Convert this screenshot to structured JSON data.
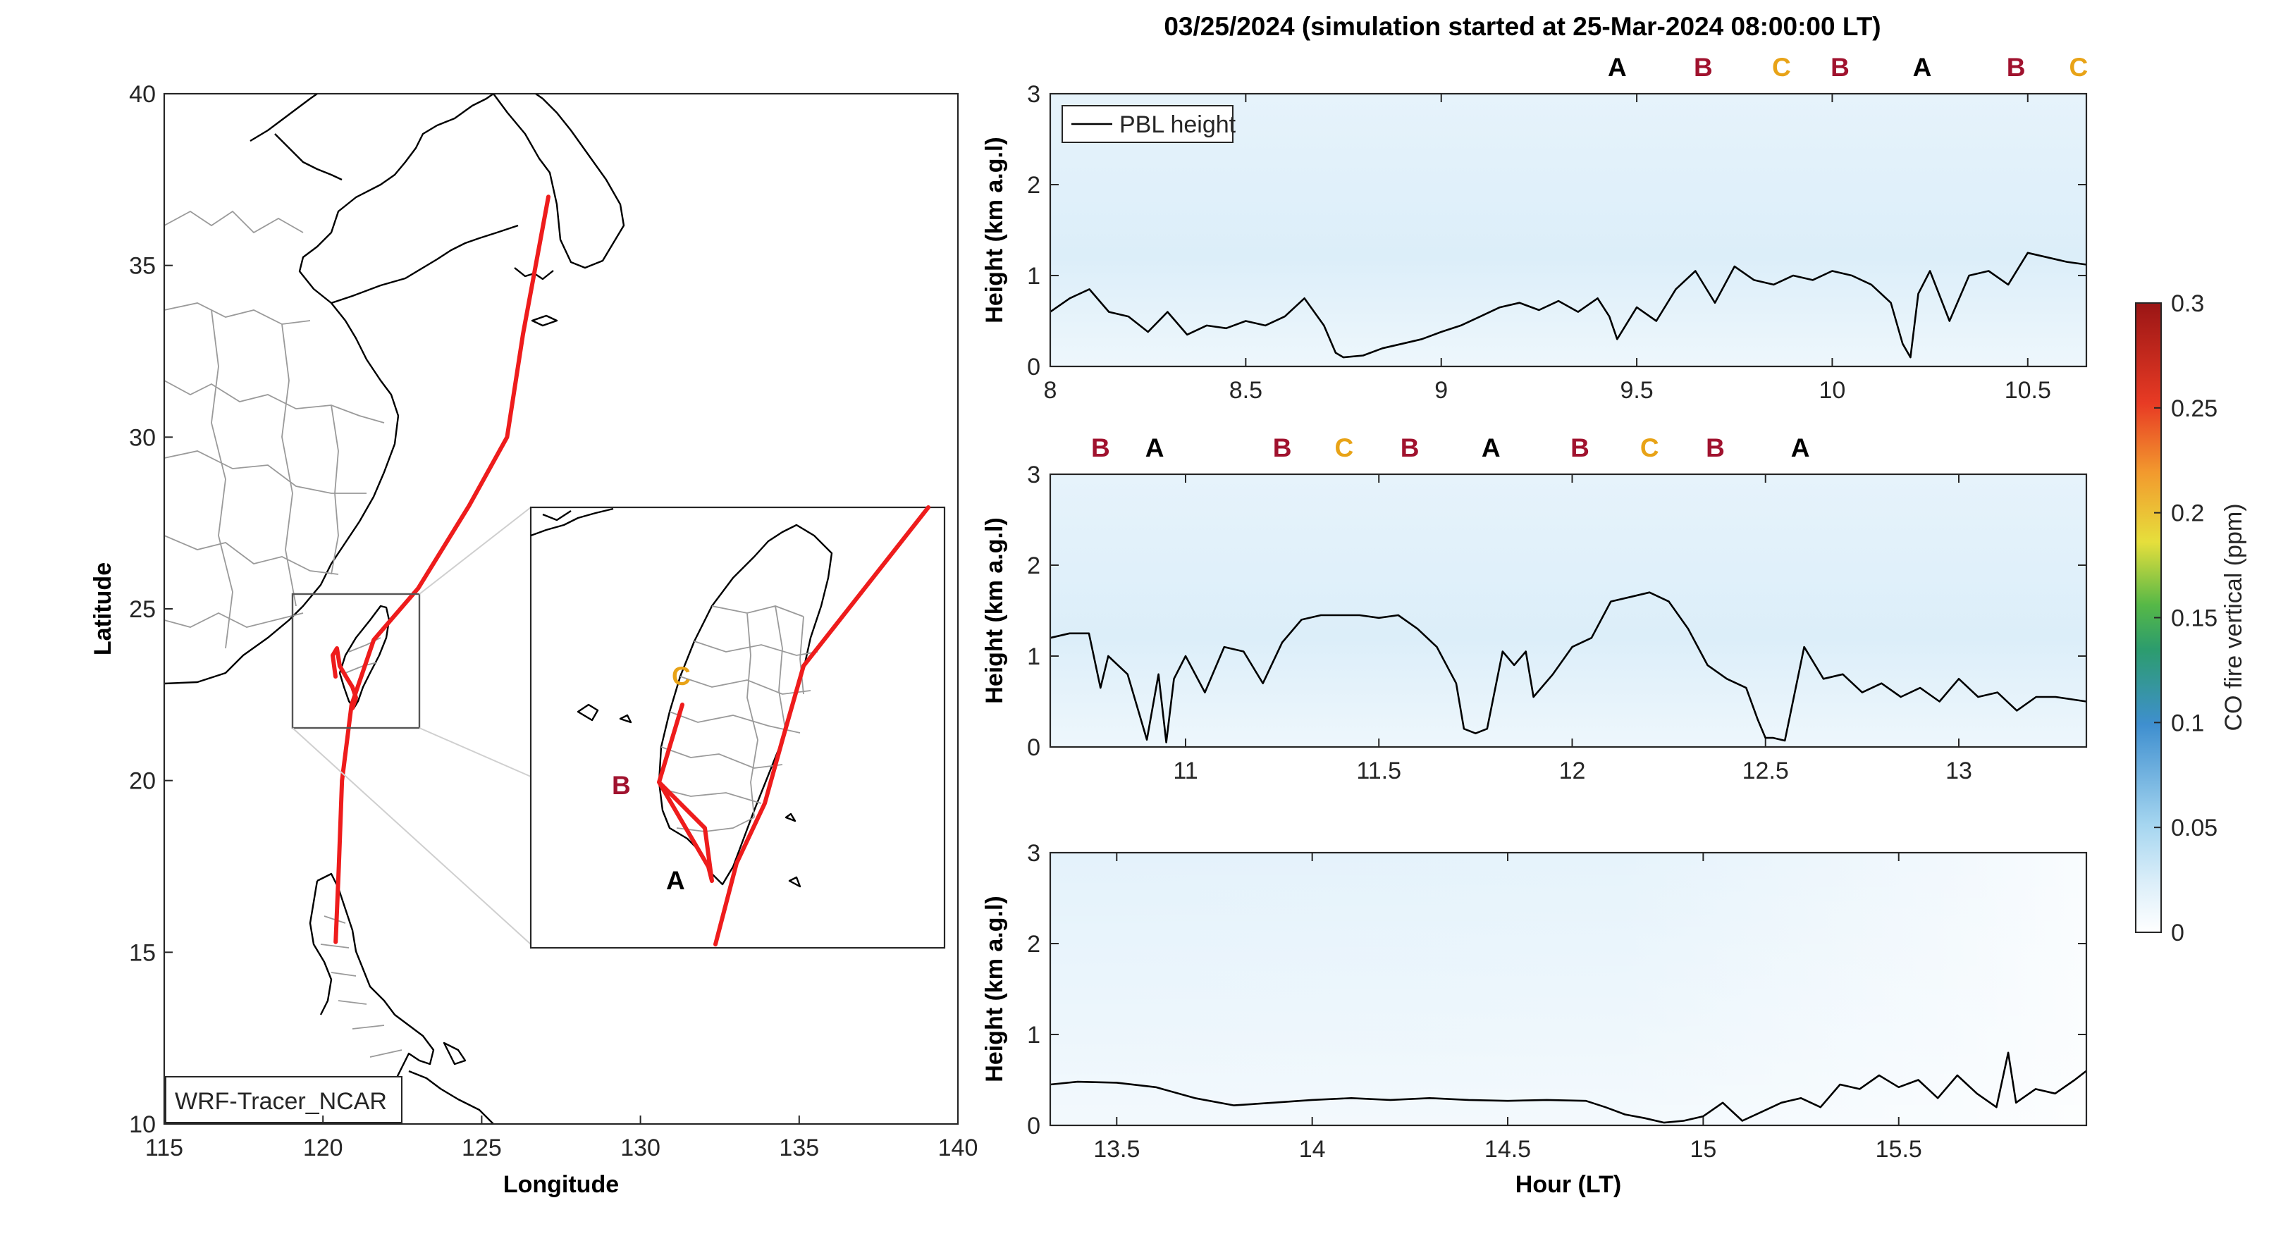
{
  "title": "03/25/2024 (simulation started at 25-Mar-2024 08:00:00 LT)",
  "colors": {
    "track": "#ee1c1c",
    "marker_A": "#000000",
    "marker_B": "#a0122e",
    "marker_C": "#e8a317",
    "pbl_line": "#000000",
    "field_tint": "#d8ecf8"
  },
  "map": {
    "xlabel": "Longitude",
    "ylabel": "Latitude",
    "xlim": [
      115,
      140
    ],
    "ylim": [
      10,
      40
    ],
    "xticks": [
      "115",
      "120",
      "125",
      "130",
      "135",
      "140"
    ],
    "yticks": [
      "10",
      "15",
      "20",
      "25",
      "30",
      "35",
      "40"
    ],
    "model_label": "WRF-Tracer_NCAR",
    "track_points_lonlat": [
      [
        127.1,
        37.0
      ],
      [
        126.7,
        35.0
      ],
      [
        126.3,
        33.0
      ],
      [
        125.8,
        30.0
      ],
      [
        124.6,
        28.0
      ],
      [
        123.0,
        25.6
      ],
      [
        121.6,
        24.1
      ],
      [
        120.9,
        22.2
      ],
      [
        120.6,
        20.0
      ],
      [
        120.5,
        17.5
      ],
      [
        120.4,
        15.3
      ]
    ],
    "inset": {
      "labels": {
        "A": "A",
        "B": "B",
        "C": "C"
      }
    }
  },
  "colorbar": {
    "label": "CO fire vertical (ppm)",
    "ticks": [
      "0",
      "0.05",
      "0.1",
      "0.15",
      "0.2",
      "0.25",
      "0.3"
    ],
    "range": [
      0,
      0.3
    ]
  },
  "chart_data": [
    {
      "type": "line",
      "panel": 1,
      "xlim": [
        8.0,
        10.65
      ],
      "ylim": [
        0,
        3
      ],
      "ylabel": "Height (km a.g.l)",
      "xticks": [
        "8",
        "8.5",
        "9",
        "9.5",
        "10",
        "10.5"
      ],
      "yticks": [
        "0",
        "1",
        "2",
        "3"
      ],
      "legend": "PBL height",
      "markers": [
        {
          "label": "A",
          "x": 9.45
        },
        {
          "label": "B",
          "x": 9.67
        },
        {
          "label": "C",
          "x": 9.87
        },
        {
          "label": "B",
          "x": 10.02
        },
        {
          "label": "A",
          "x": 10.23
        },
        {
          "label": "B",
          "x": 10.47
        },
        {
          "label": "C",
          "x": 10.63
        }
      ],
      "series": [
        {
          "x": [
            8.0,
            8.05,
            8.1,
            8.15,
            8.2,
            8.25,
            8.3,
            8.35,
            8.4,
            8.45,
            8.5,
            8.55,
            8.6,
            8.65,
            8.7,
            8.73,
            8.75,
            8.8,
            8.85,
            8.9,
            8.95,
            9.0,
            9.05,
            9.1,
            9.15,
            9.2,
            9.25,
            9.3,
            9.35,
            9.4,
            9.43,
            9.45,
            9.5,
            9.55,
            9.6,
            9.65,
            9.7,
            9.75,
            9.8,
            9.85,
            9.9,
            9.95,
            10.0,
            10.05,
            10.1,
            10.15,
            10.18,
            10.2,
            10.22,
            10.25,
            10.3,
            10.35,
            10.4,
            10.45,
            10.5,
            10.55,
            10.6,
            10.65
          ],
          "y": [
            0.6,
            0.75,
            0.85,
            0.6,
            0.55,
            0.38,
            0.6,
            0.35,
            0.45,
            0.42,
            0.5,
            0.45,
            0.55,
            0.75,
            0.45,
            0.15,
            0.1,
            0.12,
            0.2,
            0.25,
            0.3,
            0.38,
            0.45,
            0.55,
            0.65,
            0.7,
            0.62,
            0.72,
            0.6,
            0.75,
            0.55,
            0.3,
            0.65,
            0.5,
            0.85,
            1.05,
            0.7,
            1.1,
            0.95,
            0.9,
            1.0,
            0.95,
            1.05,
            1.0,
            0.9,
            0.7,
            0.25,
            0.1,
            0.8,
            1.05,
            0.5,
            1.0,
            1.05,
            0.9,
            1.25,
            1.2,
            1.15,
            1.12
          ]
        }
      ]
    },
    {
      "type": "line",
      "panel": 2,
      "xlim": [
        10.65,
        13.33
      ],
      "ylim": [
        0,
        3
      ],
      "ylabel": "Height (km a.g.l)",
      "xticks": [
        "11",
        "11.5",
        "12",
        "12.5",
        "13"
      ],
      "yticks": [
        "0",
        "1",
        "2",
        "3"
      ],
      "markers": [
        {
          "label": "B",
          "x": 10.78
        },
        {
          "label": "A",
          "x": 10.92
        },
        {
          "label": "B",
          "x": 11.25
        },
        {
          "label": "C",
          "x": 11.41
        },
        {
          "label": "B",
          "x": 11.58
        },
        {
          "label": "A",
          "x": 11.79
        },
        {
          "label": "B",
          "x": 12.02
        },
        {
          "label": "C",
          "x": 12.2
        },
        {
          "label": "B",
          "x": 12.37
        },
        {
          "label": "A",
          "x": 12.59
        }
      ],
      "series": [
        {
          "x": [
            10.65,
            10.7,
            10.75,
            10.78,
            10.8,
            10.85,
            10.9,
            10.93,
            10.95,
            10.97,
            11.0,
            11.05,
            11.1,
            11.15,
            11.2,
            11.25,
            11.3,
            11.35,
            11.4,
            11.45,
            11.5,
            11.55,
            11.6,
            11.65,
            11.7,
            11.72,
            11.75,
            11.78,
            11.82,
            11.85,
            11.88,
            11.9,
            11.95,
            12.0,
            12.05,
            12.1,
            12.15,
            12.2,
            12.25,
            12.3,
            12.35,
            12.4,
            12.45,
            12.48,
            12.5,
            12.52,
            12.55,
            12.6,
            12.65,
            12.7,
            12.75,
            12.8,
            12.85,
            12.9,
            12.95,
            13.0,
            13.05,
            13.1,
            13.15,
            13.2,
            13.25,
            13.33
          ],
          "y": [
            1.2,
            1.25,
            1.25,
            0.65,
            1.0,
            0.8,
            0.08,
            0.8,
            0.05,
            0.75,
            1.0,
            0.6,
            1.1,
            1.05,
            0.7,
            1.15,
            1.4,
            1.45,
            1.45,
            1.45,
            1.42,
            1.45,
            1.3,
            1.1,
            0.7,
            0.2,
            0.15,
            0.2,
            1.05,
            0.9,
            1.05,
            0.55,
            0.8,
            1.1,
            1.2,
            1.6,
            1.65,
            1.7,
            1.6,
            1.3,
            0.9,
            0.75,
            0.65,
            0.3,
            0.1,
            0.1,
            0.07,
            1.1,
            0.75,
            0.8,
            0.6,
            0.7,
            0.55,
            0.65,
            0.5,
            0.75,
            0.55,
            0.6,
            0.4,
            0.55,
            0.55,
            0.5
          ]
        }
      ]
    },
    {
      "type": "line",
      "panel": 3,
      "xlim": [
        13.33,
        15.98
      ],
      "ylim": [
        0,
        3
      ],
      "xlabel": "Hour (LT)",
      "ylabel": "Height (km a.g.l)",
      "xticks": [
        "13.5",
        "14",
        "14.5",
        "15",
        "15.5"
      ],
      "yticks": [
        "0",
        "1",
        "2",
        "3"
      ],
      "series": [
        {
          "x": [
            13.33,
            13.4,
            13.5,
            13.6,
            13.7,
            13.8,
            13.9,
            14.0,
            14.1,
            14.2,
            14.3,
            14.4,
            14.5,
            14.6,
            14.7,
            14.75,
            14.8,
            14.85,
            14.9,
            14.95,
            15.0,
            15.05,
            15.1,
            15.15,
            15.2,
            15.25,
            15.3,
            15.35,
            15.4,
            15.45,
            15.5,
            15.55,
            15.6,
            15.65,
            15.7,
            15.75,
            15.78,
            15.8,
            15.85,
            15.9,
            15.95,
            15.98
          ],
          "y": [
            0.45,
            0.48,
            0.47,
            0.42,
            0.3,
            0.22,
            0.25,
            0.28,
            0.3,
            0.28,
            0.3,
            0.28,
            0.27,
            0.28,
            0.27,
            0.2,
            0.12,
            0.08,
            0.03,
            0.05,
            0.1,
            0.25,
            0.05,
            0.15,
            0.25,
            0.3,
            0.2,
            0.45,
            0.4,
            0.55,
            0.42,
            0.5,
            0.3,
            0.55,
            0.35,
            0.2,
            0.8,
            0.25,
            0.4,
            0.35,
            0.5,
            0.6
          ]
        }
      ]
    }
  ]
}
